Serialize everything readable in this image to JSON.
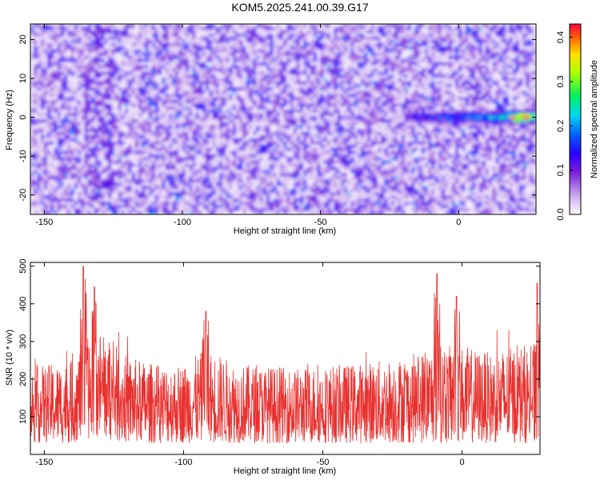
{
  "title": "KOM5.2025.241.00.39.G17",
  "chart_data": [
    {
      "type": "heatmap",
      "xlabel": "Height of straight line (km)",
      "ylabel": "Frequency (Hz)",
      "xlim": [
        -155,
        28
      ],
      "ylim": [
        -25,
        24
      ],
      "x_ticks": [
        -150,
        -100,
        -50,
        0
      ],
      "y_ticks": [
        -20,
        -10,
        0,
        10,
        20
      ],
      "colorbar": {
        "label": "Normalized spectral amplitude",
        "range": [
          0.0,
          0.43
        ],
        "ticks": [
          0.0,
          0.1,
          0.2,
          0.3,
          0.4
        ],
        "tick_labels": [
          "0.0",
          "0.1",
          "0.2",
          "0.3",
          "0.4"
        ]
      },
      "background_level": 0.06,
      "features": [
        {
          "description": "strong signal streak",
          "x_range": [
            -20,
            28
          ],
          "frequency": 0,
          "peak_amplitude": 0.42,
          "peak_x": 23
        },
        {
          "description": "weak vertical streak",
          "x_range": [
            -135,
            -125
          ],
          "frequency_range": [
            -25,
            24
          ],
          "amplitude": 0.1
        }
      ]
    },
    {
      "type": "line",
      "xlabel": "Height of straight line (km)",
      "ylabel": "SNR (10 * v/v)",
      "xlim": [
        -155,
        28
      ],
      "ylim": [
        0,
        510
      ],
      "x_ticks": [
        -150,
        -100,
        -50,
        0
      ],
      "y_ticks": [
        100,
        200,
        300,
        400,
        500
      ],
      "series": [
        {
          "color": "#e8312f",
          "envelope": {
            "x": [
              -155,
              -140,
              -136,
              -130,
              -120,
              -110,
              -100,
              -92,
              -80,
              -60,
              -40,
              -20,
              -10,
              0,
              10,
              20,
              28
            ],
            "typical_min": [
              30,
              30,
              40,
              40,
              30,
              30,
              30,
              30,
              30,
              30,
              30,
              30,
              30,
              30,
              30,
              30,
              30
            ],
            "typical_max": [
              230,
              250,
              300,
              330,
              260,
              240,
              240,
              280,
              240,
              230,
              240,
              260,
              290,
              290,
              270,
              290,
              300
            ]
          },
          "peaks": [
            {
              "x": -136,
              "y": 500
            },
            {
              "x": -132,
              "y": 445
            },
            {
              "x": -92,
              "y": 380
            },
            {
              "x": -9,
              "y": 480
            },
            {
              "x": -2,
              "y": 420
            },
            {
              "x": 27,
              "y": 455
            }
          ]
        }
      ]
    }
  ]
}
